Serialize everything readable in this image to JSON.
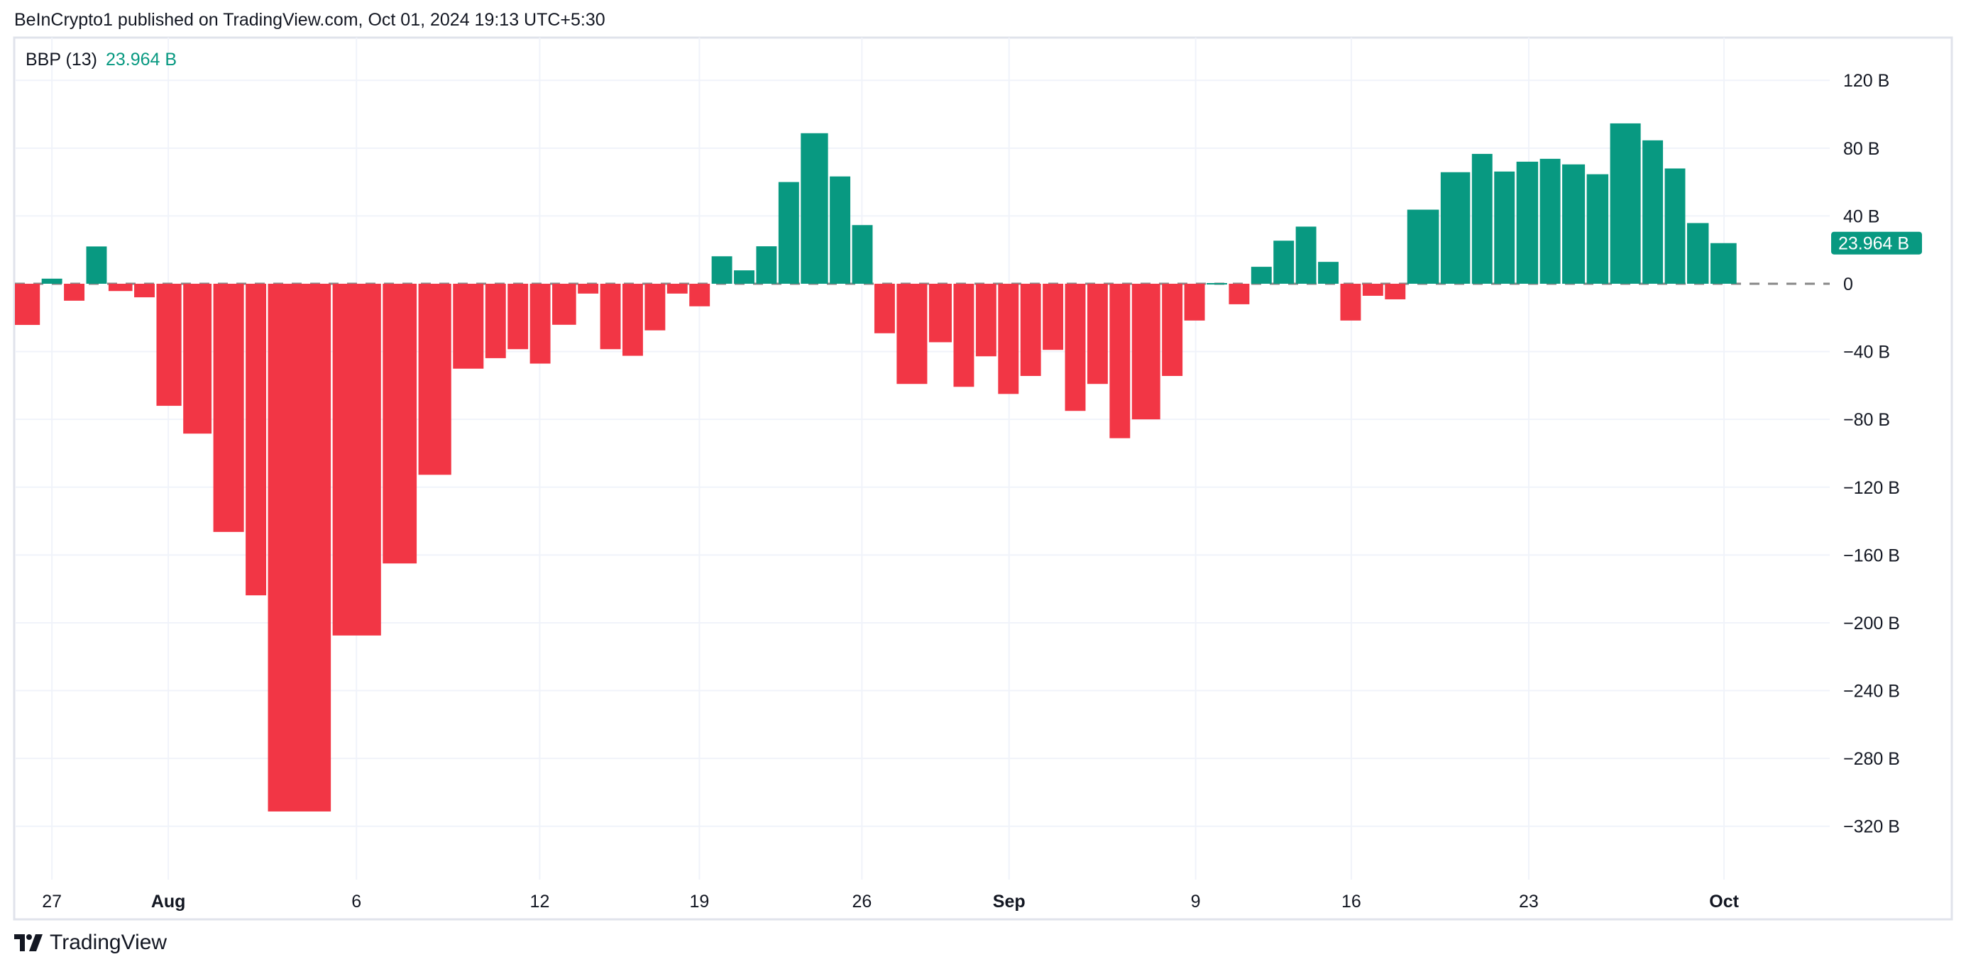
{
  "header": {
    "published": "BeInCrypto1 published on TradingView.com, Oct 01, 2024 19:13 UTC+5:30"
  },
  "legend": {
    "indicator": "BBP (13)",
    "value": "23.964 B"
  },
  "footer": {
    "brand": "TradingView"
  },
  "colors": {
    "positive": "#089981",
    "negative": "#F23645",
    "grid": "#F0F3FA",
    "text": "#131722",
    "zero_line": "#888888"
  },
  "chart_data": {
    "type": "bar",
    "title": "BBP (13)",
    "ylabel": "",
    "xlabel": "",
    "unit": "B",
    "ylim": [
      -351.5,
      145.2
    ],
    "x_range": [
      0,
      81.4
    ],
    "grid": true,
    "last_value_label": "23.964 B",
    "last_value": 23.964,
    "yticks": [
      {
        "value": 120,
        "label": "120 B"
      },
      {
        "value": 80,
        "label": "80 B"
      },
      {
        "value": 40,
        "label": "40 B"
      },
      {
        "value": 0,
        "label": "0"
      },
      {
        "value": -40,
        "label": "−40 B"
      },
      {
        "value": -80,
        "label": "−80 B"
      },
      {
        "value": -120,
        "label": "−120 B"
      },
      {
        "value": -160,
        "label": "−160 B"
      },
      {
        "value": -200,
        "label": "−200 B"
      },
      {
        "value": -240,
        "label": "−240 B"
      },
      {
        "value": -280,
        "label": "−280 B"
      },
      {
        "value": -320,
        "label": "−320 B"
      }
    ],
    "xticks": [
      {
        "pos": 1.66,
        "label": "27",
        "bold": false
      },
      {
        "pos": 6.88,
        "label": "Aug",
        "bold": true
      },
      {
        "pos": 15.32,
        "label": "6",
        "bold": false
      },
      {
        "pos": 23.54,
        "label": "12",
        "bold": false
      },
      {
        "pos": 30.7,
        "label": "19",
        "bold": false
      },
      {
        "pos": 37.99,
        "label": "26",
        "bold": false
      },
      {
        "pos": 44.59,
        "label": "Sep",
        "bold": true
      },
      {
        "pos": 52.96,
        "label": "9",
        "bold": false
      },
      {
        "pos": 59.94,
        "label": "16",
        "bold": false
      },
      {
        "pos": 67.9,
        "label": "23",
        "bold": false
      },
      {
        "pos": 76.66,
        "label": "Oct",
        "bold": true
      }
    ],
    "bars": {
      "spans": [
        1.2,
        1,
        1,
        1,
        1.15,
        1,
        1.2,
        1.35,
        1.45,
        1,
        2.9,
        2.25,
        1.6,
        1.55,
        1.45,
        1,
        1,
        1,
        1.15,
        1,
        1,
        1,
        1,
        1,
        1,
        1,
        1,
        1,
        1,
        1.3,
        1,
        1,
        1,
        1.45,
        1.1,
        1,
        1,
        1,
        1,
        1,
        1,
        1,
        1,
        1.35,
        1,
        1,
        1,
        1,
        1,
        1,
        1,
        1,
        1,
        1,
        1,
        1.5,
        1.4,
        1,
        1,
        1.05,
        1,
        1.1,
        1.05,
        1.45,
        1,
        1,
        1.05,
        1.25
      ],
      "values": [
        -24.3,
        3,
        -10,
        22,
        -4.3,
        -8,
        -72,
        -88.4,
        -146.4,
        -183.8,
        -311.3,
        -207.5,
        -165,
        -112.7,
        -50.1,
        -43.9,
        -38.6,
        -47.1,
        -24.2,
        -5.8,
        -38.6,
        -42.5,
        -27.5,
        -5.8,
        -13.3,
        16.2,
        7.9,
        22.1,
        60,
        88.8,
        63.3,
        34.6,
        -29.2,
        -59.1,
        -34.5,
        -60.8,
        -42.8,
        -65,
        -54.4,
        -39,
        -75,
        -59.1,
        -91.1,
        -80,
        -54.4,
        -21.7,
        0.4,
        -12.1,
        10,
        25.4,
        33.7,
        12.9,
        -21.7,
        -7.1,
        -9.2,
        43.7,
        65.8,
        76.6,
        66.2,
        72,
        73.7,
        70.4,
        64.6,
        94.6,
        84.6,
        68,
        35.8,
        23.964
      ]
    }
  }
}
